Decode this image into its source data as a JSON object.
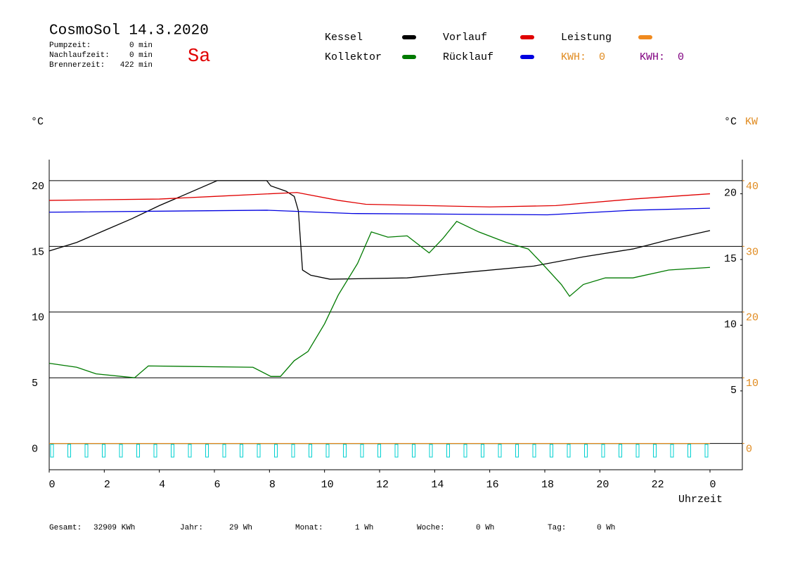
{
  "header": {
    "title": "CosmoSol 14.3.2020",
    "day": "Sa",
    "stats": [
      {
        "label": "Pumpzeit:",
        "value": "0 min"
      },
      {
        "label": "Nachlaufzeit:",
        "value": "0 min"
      },
      {
        "label": "Brennerzeit:",
        "value": "422 min"
      }
    ],
    "kwh": [
      {
        "label": "KWH:",
        "value": 0,
        "color": "#e08a1e"
      },
      {
        "label": "KWH:",
        "value": 0,
        "color": "#800080"
      }
    ]
  },
  "chart_data": {
    "type": "line",
    "ylabel": "°C",
    "y2label": "°C",
    "y3label": "KW",
    "xlabel": "Uhrzeit",
    "xlim": [
      0,
      24
    ],
    "xticks": [
      0,
      2,
      4,
      6,
      8,
      10,
      12,
      14,
      16,
      18,
      20,
      22,
      {
        "value": 24,
        "label": "0"
      }
    ],
    "ylim": [
      -2,
      21.6
    ],
    "yticks": [
      0,
      5,
      10,
      15,
      20
    ],
    "y2lim": [
      -1,
      22.6
    ],
    "y2ticks": [
      5,
      10,
      15,
      20
    ],
    "y3lim": [
      -4,
      43.2
    ],
    "y3ticks": [
      0,
      10,
      20,
      30,
      40
    ],
    "y3color": "#e08a1e",
    "grid": true,
    "series": [
      {
        "name": "Kessel",
        "color": "#000000",
        "x": [
          0,
          1,
          2,
          3,
          4,
          5,
          6.1,
          7.9,
          8.05,
          8.6,
          8.9,
          9.05,
          9.2,
          9.5,
          10.2,
          13,
          14.5,
          17.6,
          19.4,
          21.2,
          22.5,
          24
        ],
        "values": [
          14.65,
          15.3,
          16.2,
          17.1,
          18.1,
          19.0,
          20,
          20,
          19.6,
          19.2,
          18.8,
          17.7,
          13.2,
          12.8,
          12.5,
          12.6,
          12.9,
          13.5,
          14.2,
          14.8,
          15.5,
          16.2
        ]
      },
      {
        "name": "Kollektor",
        "color": "#007a00",
        "x": [
          0,
          1,
          1.7,
          3.1,
          3.6,
          7.4,
          8.05,
          8.4,
          8.9,
          9.4,
          10,
          10.5,
          11.2,
          11.7,
          12.3,
          13,
          13.8,
          14.3,
          14.8,
          15.6,
          16.6,
          17.4,
          17.9,
          18.6,
          18.9,
          19.4,
          20.2,
          21.2,
          22.5,
          24
        ],
        "values": [
          6.1,
          5.8,
          5.3,
          5.0,
          5.9,
          5.8,
          5.1,
          5.1,
          6.3,
          7.0,
          9.1,
          11.3,
          13.7,
          16.1,
          15.7,
          15.8,
          14.5,
          15.6,
          16.9,
          16.1,
          15.3,
          14.8,
          13.7,
          12.1,
          11.2,
          12.1,
          12.6,
          12.6,
          13.2,
          13.4
        ]
      },
      {
        "name": "Vorlauf",
        "color": "#e00000",
        "x": [
          0,
          4,
          6,
          9,
          10.5,
          11.5,
          16,
          18.4,
          21.2,
          24
        ],
        "values": [
          18.5,
          18.6,
          18.8,
          19.1,
          18.5,
          18.2,
          18.0,
          18.1,
          18.6,
          19.0
        ]
      },
      {
        "name": "Rücklauf",
        "color": "#0000e0",
        "x": [
          0,
          7.9,
          11,
          18.1,
          21.2,
          24
        ],
        "values": [
          17.6,
          17.75,
          17.5,
          17.4,
          17.75,
          17.9
        ]
      },
      {
        "name": "Leistung",
        "color": "#f08a1e",
        "axis": "y3",
        "x": [
          0,
          24
        ],
        "values": [
          0,
          0
        ]
      }
    ]
  },
  "footer": [
    {
      "label": "Gesamt:",
      "value": "32909 KWh"
    },
    {
      "label": "Jahr:",
      "value": "29 Wh"
    },
    {
      "label": "Monat:",
      "value": "1 Wh"
    },
    {
      "label": "Woche:",
      "value": "0 Wh"
    },
    {
      "label": "Tag:",
      "value": "0 Wh"
    }
  ]
}
